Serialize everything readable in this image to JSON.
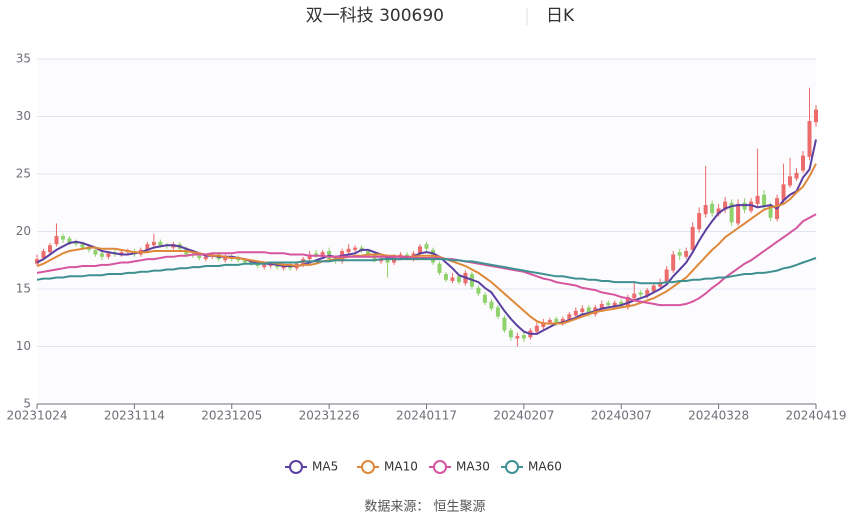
{
  "chart_data": {
    "type": "candlestick",
    "title": "双一科技 300690",
    "subtitle": "日K",
    "source": "数据来源：  恒生聚源",
    "categories": [
      "20231024",
      null,
      null,
      null,
      null,
      null,
      null,
      null,
      null,
      null,
      null,
      null,
      null,
      null,
      null,
      "20231114",
      null,
      null,
      null,
      null,
      null,
      null,
      null,
      null,
      null,
      null,
      null,
      null,
      null,
      null,
      "20231205",
      null,
      null,
      null,
      null,
      null,
      null,
      null,
      null,
      null,
      null,
      null,
      null,
      null,
      null,
      "20231226",
      null,
      null,
      null,
      null,
      null,
      null,
      null,
      null,
      null,
      null,
      null,
      null,
      null,
      null,
      "20240117",
      null,
      null,
      null,
      null,
      null,
      null,
      null,
      null,
      null,
      null,
      null,
      null,
      null,
      null,
      "20240207",
      null,
      null,
      null,
      null,
      null,
      null,
      null,
      null,
      null,
      null,
      null,
      null,
      null,
      null,
      "20240307",
      null,
      null,
      null,
      null,
      null,
      null,
      null,
      null,
      null,
      null,
      null,
      null,
      null,
      null,
      "20240328",
      null,
      null,
      null,
      null,
      null,
      null,
      null,
      null,
      null,
      null,
      null,
      null,
      null,
      null,
      "20240419"
    ],
    "up_color": "#ec6b6b",
    "down_color": "#8fd16b",
    "candles": {
      "open": [
        17.2,
        17.7,
        18.2,
        18.9,
        19.6,
        19.4,
        19.1,
        18.9,
        18.7,
        18.4,
        18.1,
        17.8,
        18.2,
        18.0,
        18.2,
        18.3,
        18.0,
        18.4,
        18.8,
        19.1,
        18.8,
        18.6,
        18.9,
        18.5,
        18.0,
        17.9,
        17.6,
        17.8,
        18.0,
        17.5,
        17.8,
        17.7,
        17.5,
        17.4,
        17.2,
        16.9,
        17.0,
        17.2,
        16.8,
        17.1,
        16.8,
        17.1,
        17.6,
        18.1,
        17.8,
        18.3,
        17.7,
        17.4,
        18.2,
        18.4,
        18.6,
        18.3,
        17.9,
        17.4,
        17.6,
        17.3,
        17.7,
        18.0,
        17.6,
        18.1,
        18.9,
        18.4,
        17.2,
        16.3,
        15.7,
        16.1,
        15.5,
        16.3,
        15.1,
        14.5,
        13.9,
        13.4,
        12.5,
        11.4,
        10.7,
        11.0,
        10.8,
        11.3,
        11.7,
        12.1,
        12.4,
        12.0,
        12.3,
        12.7,
        13.0,
        13.4,
        12.8,
        13.3,
        13.8,
        13.5,
        13.9,
        13.4,
        14.2,
        14.7,
        14.4,
        14.8,
        15.2,
        15.5,
        16.6,
        18.2,
        17.8,
        18.4,
        20.2,
        21.5,
        22.4,
        21.5,
        21.9,
        22.5,
        20.7,
        22.5,
        21.8,
        22.4,
        23.2,
        22.3,
        21.1,
        22.7,
        24.0,
        24.6,
        25.3,
        26.5,
        29.5
      ],
      "close": [
        17.6,
        18.3,
        18.8,
        19.6,
        19.3,
        19.0,
        18.9,
        18.6,
        18.4,
        18.0,
        17.8,
        18.1,
        18.0,
        18.2,
        18.3,
        18.0,
        18.4,
        18.9,
        19.1,
        18.8,
        18.7,
        18.9,
        18.5,
        18.0,
        17.9,
        17.7,
        17.8,
        18.0,
        17.6,
        17.8,
        17.6,
        17.5,
        17.3,
        17.2,
        17.0,
        17.1,
        17.2,
        16.9,
        17.0,
        16.8,
        17.2,
        17.6,
        18.0,
        17.9,
        18.2,
        17.6,
        17.4,
        18.3,
        18.5,
        18.6,
        18.3,
        17.9,
        17.5,
        17.6,
        17.3,
        17.8,
        18.0,
        17.7,
        18.1,
        18.7,
        18.5,
        17.3,
        16.4,
        15.8,
        16.0,
        15.6,
        16.4,
        15.2,
        14.6,
        13.8,
        13.3,
        12.6,
        11.4,
        10.8,
        10.9,
        10.7,
        11.4,
        11.8,
        12.1,
        12.3,
        12.0,
        12.4,
        12.8,
        13.1,
        13.3,
        12.9,
        13.4,
        13.7,
        13.6,
        13.8,
        13.5,
        14.3,
        14.6,
        14.5,
        14.9,
        15.3,
        15.6,
        16.7,
        18.0,
        17.9,
        18.3,
        20.4,
        21.6,
        22.3,
        21.6,
        22.0,
        22.6,
        20.8,
        22.4,
        21.9,
        22.6,
        23.1,
        22.2,
        21.2,
        22.9,
        24.1,
        24.8,
        25.1,
        26.6,
        29.6,
        30.6
      ],
      "high": [
        18.0,
        18.5,
        19.0,
        20.7,
        19.8,
        19.6,
        19.3,
        19.1,
        18.8,
        18.5,
        18.3,
        18.3,
        18.4,
        18.4,
        18.5,
        18.5,
        18.6,
        19.1,
        19.8,
        19.3,
        19.0,
        19.1,
        19.1,
        18.7,
        18.2,
        18.1,
        18.0,
        18.2,
        18.2,
        18.0,
        18.0,
        17.9,
        17.7,
        17.6,
        17.4,
        17.3,
        17.4,
        17.4,
        17.2,
        17.3,
        17.4,
        17.8,
        18.3,
        18.4,
        18.4,
        18.6,
        17.9,
        18.5,
        18.9,
        18.8,
        18.8,
        18.5,
        18.1,
        17.8,
        17.8,
        18.0,
        18.2,
        18.2,
        18.3,
        18.9,
        19.1,
        18.6,
        17.4,
        16.5,
        16.4,
        16.3,
        16.6,
        16.5,
        15.3,
        14.7,
        14.1,
        13.6,
        12.7,
        11.6,
        11.2,
        11.3,
        11.6,
        12.1,
        12.4,
        12.5,
        12.6,
        12.6,
        13.0,
        13.4,
        13.6,
        13.6,
        13.6,
        14.0,
        14.0,
        14.0,
        14.1,
        14.5,
        15.6,
        14.9,
        15.1,
        15.5,
        15.9,
        17.0,
        18.3,
        18.5,
        18.6,
        20.8,
        22.1,
        25.7,
        22.7,
        22.4,
        23.0,
        22.8,
        22.8,
        22.9,
        22.9,
        27.2,
        23.6,
        22.5,
        23.2,
        25.9,
        26.4,
        25.5,
        27.0,
        32.5,
        31.0
      ],
      "low": [
        17.0,
        17.5,
        18.0,
        18.7,
        19.0,
        18.8,
        18.7,
        18.4,
        18.2,
        17.8,
        17.5,
        17.6,
        17.8,
        17.8,
        18.0,
        17.8,
        17.8,
        18.2,
        18.6,
        18.6,
        18.5,
        18.4,
        18.3,
        17.8,
        17.7,
        17.5,
        17.4,
        17.6,
        17.4,
        17.3,
        17.4,
        17.3,
        17.1,
        17.0,
        16.8,
        16.7,
        16.8,
        16.7,
        16.6,
        16.6,
        16.6,
        16.9,
        17.4,
        17.7,
        17.6,
        17.4,
        17.2,
        17.2,
        18.0,
        18.2,
        18.1,
        17.7,
        17.3,
        17.2,
        16.0,
        17.1,
        17.5,
        17.5,
        17.4,
        17.9,
        18.3,
        17.1,
        16.2,
        15.6,
        15.5,
        15.4,
        15.3,
        15.0,
        14.4,
        13.6,
        13.1,
        12.4,
        11.2,
        10.5,
        10.0,
        10.4,
        10.6,
        11.1,
        11.5,
        11.9,
        11.8,
        11.8,
        12.1,
        12.5,
        12.8,
        12.6,
        12.6,
        13.1,
        13.4,
        13.3,
        13.3,
        13.2,
        14.0,
        14.3,
        14.2,
        14.6,
        15.0,
        15.3,
        16.4,
        17.5,
        17.6,
        18.2,
        19.9,
        21.2,
        21.3,
        21.3,
        21.6,
        20.5,
        20.5,
        21.6,
        21.6,
        22.1,
        22.0,
        20.9,
        20.9,
        22.5,
        23.8,
        24.4,
        25.1,
        26.2,
        29.1
      ]
    },
    "series": [
      {
        "name": "MA5",
        "color": "#5b3fa0",
        "values": [
          17.3,
          17.6,
          18.0,
          18.4,
          18.7,
          19.0,
          19.1,
          19.0,
          18.8,
          18.6,
          18.3,
          18.2,
          18.1,
          18.0,
          18.0,
          18.1,
          18.2,
          18.4,
          18.6,
          18.7,
          18.8,
          18.8,
          18.7,
          18.5,
          18.3,
          18.1,
          17.9,
          17.9,
          17.8,
          17.8,
          17.8,
          17.7,
          17.6,
          17.4,
          17.3,
          17.2,
          17.2,
          17.1,
          17.0,
          17.0,
          17.0,
          17.1,
          17.3,
          17.5,
          17.7,
          17.9,
          17.8,
          17.9,
          18.0,
          18.1,
          18.4,
          18.4,
          18.2,
          18.0,
          17.7,
          17.6,
          17.6,
          17.7,
          17.8,
          18.1,
          18.2,
          18.1,
          17.8,
          17.3,
          16.8,
          16.2,
          16.0,
          15.8,
          15.6,
          15.1,
          14.7,
          13.9,
          13.1,
          12.4,
          11.8,
          11.3,
          11.1,
          11.1,
          11.4,
          11.7,
          12.0,
          12.1,
          12.3,
          12.5,
          12.8,
          12.9,
          13.1,
          13.3,
          13.4,
          13.5,
          13.6,
          13.8,
          14.0,
          14.2,
          14.4,
          14.7,
          15.0,
          15.4,
          16.1,
          16.7,
          17.3,
          18.2,
          19.2,
          20.1,
          20.9,
          21.6,
          22.0,
          22.2,
          22.3,
          22.3,
          22.3,
          22.1,
          22.2,
          22.3,
          22.0,
          22.7,
          23.2,
          23.5,
          24.7,
          25.4,
          28.0
        ]
      },
      {
        "name": "MA10",
        "color": "#e0883a",
        "values": [
          17.0,
          17.2,
          17.5,
          17.8,
          18.1,
          18.3,
          18.4,
          18.5,
          18.6,
          18.6,
          18.5,
          18.5,
          18.5,
          18.4,
          18.3,
          18.2,
          18.2,
          18.2,
          18.3,
          18.3,
          18.3,
          18.3,
          18.3,
          18.3,
          18.2,
          18.1,
          18.0,
          17.9,
          17.9,
          17.8,
          17.7,
          17.7,
          17.6,
          17.5,
          17.4,
          17.3,
          17.3,
          17.2,
          17.1,
          17.1,
          17.0,
          17.1,
          17.1,
          17.2,
          17.4,
          17.5,
          17.6,
          17.7,
          17.8,
          17.9,
          17.9,
          18.0,
          18.0,
          18.0,
          17.9,
          17.9,
          17.8,
          17.8,
          17.8,
          17.9,
          17.9,
          17.9,
          17.8,
          17.6,
          17.4,
          17.2,
          17.0,
          16.7,
          16.4,
          16.0,
          15.6,
          15.1,
          14.6,
          14.1,
          13.6,
          13.1,
          12.6,
          12.2,
          12.0,
          12.0,
          12.0,
          12.0,
          12.2,
          12.4,
          12.6,
          12.8,
          13.0,
          13.1,
          13.2,
          13.3,
          13.4,
          13.5,
          13.6,
          13.8,
          14.0,
          14.2,
          14.5,
          14.8,
          15.2,
          15.6,
          16.0,
          16.6,
          17.2,
          17.8,
          18.4,
          18.9,
          19.5,
          19.9,
          20.3,
          20.7,
          21.1,
          21.5,
          21.9,
          22.1,
          22.2,
          22.4,
          22.8,
          23.4,
          23.9,
          24.8,
          25.9
        ]
      },
      {
        "name": "MA30",
        "color": "#d6559f",
        "values": [
          16.4,
          16.5,
          16.6,
          16.7,
          16.8,
          16.9,
          16.9,
          17.0,
          17.0,
          17.0,
          17.1,
          17.1,
          17.2,
          17.3,
          17.3,
          17.4,
          17.5,
          17.6,
          17.6,
          17.7,
          17.8,
          17.8,
          17.9,
          17.9,
          18.0,
          18.0,
          18.0,
          18.1,
          18.1,
          18.1,
          18.1,
          18.2,
          18.2,
          18.2,
          18.2,
          18.2,
          18.1,
          18.1,
          18.1,
          18.0,
          18.0,
          18.0,
          17.9,
          17.9,
          17.9,
          17.8,
          17.8,
          17.8,
          17.8,
          17.8,
          17.8,
          17.8,
          17.8,
          17.8,
          17.8,
          17.8,
          17.8,
          17.8,
          17.7,
          17.7,
          17.7,
          17.7,
          17.7,
          17.6,
          17.6,
          17.5,
          17.4,
          17.3,
          17.2,
          17.1,
          17.0,
          16.9,
          16.8,
          16.7,
          16.6,
          16.5,
          16.3,
          16.1,
          15.9,
          15.8,
          15.6,
          15.5,
          15.4,
          15.3,
          15.1,
          15.0,
          14.9,
          14.7,
          14.6,
          14.5,
          14.3,
          14.2,
          14.0,
          13.9,
          13.8,
          13.7,
          13.6,
          13.6,
          13.6,
          13.6,
          13.7,
          13.9,
          14.2,
          14.6,
          15.1,
          15.5,
          16.0,
          16.4,
          16.8,
          17.2,
          17.5,
          17.9,
          18.3,
          18.7,
          19.1,
          19.5,
          19.9,
          20.3,
          20.9,
          21.2,
          21.5
        ]
      },
      {
        "name": "MA60",
        "color": "#3f9091",
        "values": [
          15.8,
          15.9,
          15.9,
          16.0,
          16.0,
          16.1,
          16.1,
          16.1,
          16.2,
          16.2,
          16.2,
          16.3,
          16.3,
          16.3,
          16.4,
          16.4,
          16.5,
          16.5,
          16.6,
          16.6,
          16.7,
          16.7,
          16.8,
          16.8,
          16.9,
          16.9,
          17.0,
          17.0,
          17.0,
          17.1,
          17.1,
          17.1,
          17.2,
          17.2,
          17.2,
          17.2,
          17.3,
          17.3,
          17.3,
          17.3,
          17.3,
          17.4,
          17.4,
          17.4,
          17.4,
          17.4,
          17.5,
          17.5,
          17.5,
          17.5,
          17.5,
          17.5,
          17.5,
          17.6,
          17.6,
          17.6,
          17.6,
          17.6,
          17.6,
          17.6,
          17.6,
          17.6,
          17.6,
          17.6,
          17.5,
          17.5,
          17.4,
          17.4,
          17.3,
          17.2,
          17.1,
          17.0,
          16.9,
          16.8,
          16.7,
          16.6,
          16.5,
          16.4,
          16.3,
          16.2,
          16.1,
          16.1,
          16.0,
          15.9,
          15.9,
          15.8,
          15.8,
          15.7,
          15.7,
          15.6,
          15.6,
          15.6,
          15.6,
          15.5,
          15.5,
          15.5,
          15.5,
          15.6,
          15.6,
          15.7,
          15.7,
          15.8,
          15.8,
          15.9,
          15.9,
          16.0,
          16.0,
          16.1,
          16.2,
          16.3,
          16.3,
          16.4,
          16.4,
          16.5,
          16.6,
          16.8,
          16.9,
          17.1,
          17.3,
          17.5,
          17.7
        ]
      }
    ],
    "ylim": [
      5,
      35
    ],
    "yticks": [
      5,
      10,
      15,
      20,
      25,
      30,
      35
    ],
    "grid": true,
    "legend": "bottom"
  }
}
